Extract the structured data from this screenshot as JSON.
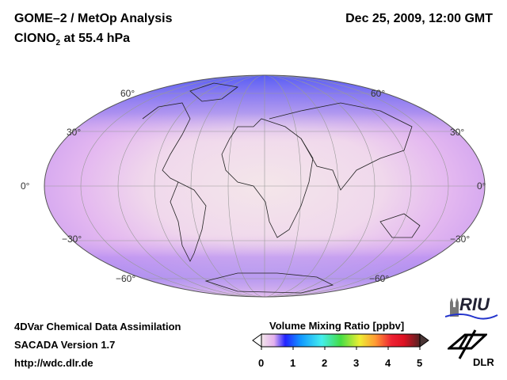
{
  "header": {
    "title": "GOME–2 / MetOp Analysis",
    "species_prefix": "ClONO",
    "species_sub": "2",
    "species_suffix": " at 55.4 hPa",
    "datetime": "Dec 25, 2009, 12:00 GMT"
  },
  "map": {
    "projection": "Mollweide",
    "lat_labels": [
      "60°",
      "30°",
      "0°",
      "−30°",
      "−60°"
    ]
  },
  "footer": {
    "line1": "4DVar Chemical Data Assimilation",
    "line2": "SACADA Version 1.7",
    "line3": "http://wdc.dlr.de"
  },
  "colorbar": {
    "title": "Volume Mixing Ratio [ppbv]",
    "ticks": [
      "0",
      "1",
      "2",
      "3",
      "4",
      "5"
    ],
    "colors": [
      "#f3e6ea",
      "#e3b0ee",
      "#2222ff",
      "#1199ff",
      "#44eeee",
      "#44dd44",
      "#eeee33",
      "#ff9933",
      "#ee2233",
      "#dd1122",
      "#552222"
    ]
  },
  "logos": {
    "riu": "RIU",
    "dlr": "DLR"
  }
}
